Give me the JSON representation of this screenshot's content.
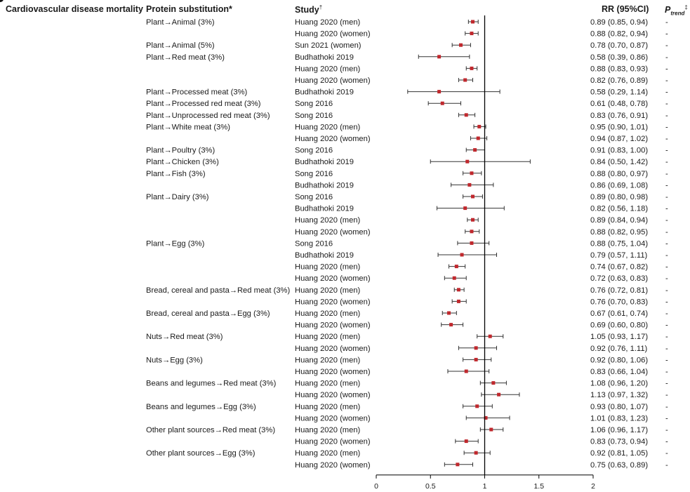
{
  "headers": {
    "outcome": "Cardiovascular disease mortality",
    "substitution": "Protein substitution*",
    "study": "Study",
    "study_mark": "†",
    "rr": "RR (95%CI)",
    "ptrend_p": "P",
    "ptrend_sub": "trend",
    "ptrend_mark": "‡"
  },
  "colors": {
    "point": "#c0282d",
    "ci_line": "#333333",
    "reference_line": "#000000",
    "text": "#1a1a1a"
  },
  "chart_data": {
    "type": "forest",
    "title": "Cardiovascular disease mortality",
    "xlabel": "",
    "xlim": [
      0,
      2
    ],
    "xticks": [
      0,
      0.5,
      1,
      1.5,
      2
    ],
    "xtick_labels": [
      "0",
      "0.5",
      "1",
      "1.5",
      "2"
    ],
    "reference_value": 1,
    "rows": [
      {
        "substitution": "Plant→Animal (3%)",
        "study": "Huang 2020 (men)",
        "rr": 0.89,
        "lo": 0.85,
        "hi": 0.94,
        "text": "0.89 (0.85, 0.94)",
        "ptrend": "-"
      },
      {
        "substitution": "",
        "study": "Huang 2020 (women)",
        "rr": 0.88,
        "lo": 0.82,
        "hi": 0.94,
        "text": "0.88 (0.82, 0.94)",
        "ptrend": "-"
      },
      {
        "substitution": "Plant→Animal (5%)",
        "study": "Sun 2021 (women)",
        "rr": 0.78,
        "lo": 0.7,
        "hi": 0.87,
        "text": "0.78 (0.70, 0.87)",
        "ptrend": "-"
      },
      {
        "substitution": "Plant→Red meat (3%)",
        "study": "Budhathoki 2019",
        "rr": 0.58,
        "lo": 0.39,
        "hi": 0.86,
        "text": "0.58 (0.39, 0.86)",
        "ptrend": "-"
      },
      {
        "substitution": "",
        "study": "Huang 2020 (men)",
        "rr": 0.88,
        "lo": 0.83,
        "hi": 0.93,
        "text": "0.88 (0.83, 0.93)",
        "ptrend": "-"
      },
      {
        "substitution": "",
        "study": "Huang 2020 (women)",
        "rr": 0.82,
        "lo": 0.76,
        "hi": 0.89,
        "text": "0.82 (0.76, 0.89)",
        "ptrend": "-"
      },
      {
        "substitution": "Plant→Processed meat (3%)",
        "study": "Budhathoki 2019",
        "rr": 0.58,
        "lo": 0.29,
        "hi": 1.14,
        "text": "0.58 (0.29, 1.14)",
        "ptrend": "-"
      },
      {
        "substitution": "Plant→Processed red meat (3%)",
        "study": "Song 2016",
        "rr": 0.61,
        "lo": 0.48,
        "hi": 0.78,
        "text": "0.61 (0.48, 0.78)",
        "ptrend": "-"
      },
      {
        "substitution": "Plant→Unprocessed red meat (3%)",
        "study": "Song 2016",
        "rr": 0.83,
        "lo": 0.76,
        "hi": 0.91,
        "text": "0.83 (0.76, 0.91)",
        "ptrend": "-"
      },
      {
        "substitution": "Plant→White meat (3%)",
        "study": "Huang 2020 (men)",
        "rr": 0.95,
        "lo": 0.9,
        "hi": 1.01,
        "text": "0.95 (0.90, 1.01)",
        "ptrend": "-"
      },
      {
        "substitution": "",
        "study": "Huang 2020 (women)",
        "rr": 0.94,
        "lo": 0.87,
        "hi": 1.02,
        "text": "0.94 (0.87, 1.02)",
        "ptrend": "-"
      },
      {
        "substitution": "Plant→Poultry (3%)",
        "study": "Song 2016",
        "rr": 0.91,
        "lo": 0.83,
        "hi": 1.0,
        "text": "0.91 (0.83, 1.00)",
        "ptrend": "-"
      },
      {
        "substitution": "Plant→Chicken (3%)",
        "study": "Budhathoki 2019",
        "rr": 0.84,
        "lo": 0.5,
        "hi": 1.42,
        "text": "0.84 (0.50, 1.42)",
        "ptrend": "-"
      },
      {
        "substitution": "Plant→Fish (3%)",
        "study": "Song 2016",
        "rr": 0.88,
        "lo": 0.8,
        "hi": 0.97,
        "text": "0.88 (0.80, 0.97)",
        "ptrend": "-"
      },
      {
        "substitution": "",
        "study": "Budhathoki 2019",
        "rr": 0.86,
        "lo": 0.69,
        "hi": 1.08,
        "text": "0.86 (0.69, 1.08)",
        "ptrend": "-"
      },
      {
        "substitution": "Plant→Dairy (3%)",
        "study": "Song 2016",
        "rr": 0.89,
        "lo": 0.8,
        "hi": 0.98,
        "text": "0.89 (0.80, 0.98)",
        "ptrend": "-"
      },
      {
        "substitution": "",
        "study": "Budhathoki 2019",
        "rr": 0.82,
        "lo": 0.56,
        "hi": 1.18,
        "text": "0.82 (0.56, 1.18)",
        "ptrend": "-"
      },
      {
        "substitution": "",
        "study": "Huang 2020 (men)",
        "rr": 0.89,
        "lo": 0.84,
        "hi": 0.94,
        "text": "0.89 (0.84, 0.94)",
        "ptrend": "-"
      },
      {
        "substitution": "",
        "study": "Huang 2020 (women)",
        "rr": 0.88,
        "lo": 0.82,
        "hi": 0.95,
        "text": "0.88 (0.82, 0.95)",
        "ptrend": "-"
      },
      {
        "substitution": "Plant→Egg (3%)",
        "study": "Song 2016",
        "rr": 0.88,
        "lo": 0.75,
        "hi": 1.04,
        "text": "0.88 (0.75, 1.04)",
        "ptrend": "-"
      },
      {
        "substitution": "",
        "study": "Budhathoki 2019",
        "rr": 0.79,
        "lo": 0.57,
        "hi": 1.11,
        "text": "0.79 (0.57, 1.11)",
        "ptrend": "-"
      },
      {
        "substitution": "",
        "study": "Huang 2020 (men)",
        "rr": 0.74,
        "lo": 0.67,
        "hi": 0.82,
        "text": "0.74 (0.67, 0.82)",
        "ptrend": "-"
      },
      {
        "substitution": "",
        "study": "Huang 2020 (women)",
        "rr": 0.72,
        "lo": 0.63,
        "hi": 0.83,
        "text": "0.72 (0.63, 0.83)",
        "ptrend": "-"
      },
      {
        "substitution": "Bread, cereal and pasta→Red meat (3%)",
        "study": "Huang 2020 (men)",
        "rr": 0.76,
        "lo": 0.72,
        "hi": 0.81,
        "text": "0.76 (0.72, 0.81)",
        "ptrend": "-"
      },
      {
        "substitution": "",
        "study": "Huang 2020 (women)",
        "rr": 0.76,
        "lo": 0.7,
        "hi": 0.83,
        "text": "0.76 (0.70, 0.83)",
        "ptrend": "-"
      },
      {
        "substitution": "Bread, cereal and pasta→Egg (3%)",
        "study": "Huang 2020 (men)",
        "rr": 0.67,
        "lo": 0.61,
        "hi": 0.74,
        "text": "0.67 (0.61, 0.74)",
        "ptrend": "-"
      },
      {
        "substitution": "",
        "study": "Huang 2020 (women)",
        "rr": 0.69,
        "lo": 0.6,
        "hi": 0.8,
        "text": "0.69 (0.60, 0.80)",
        "ptrend": "-"
      },
      {
        "substitution": "Nuts→Red meat (3%)",
        "study": "Huang 2020 (men)",
        "rr": 1.05,
        "lo": 0.93,
        "hi": 1.17,
        "text": "1.05 (0.93, 1.17)",
        "ptrend": "-"
      },
      {
        "substitution": "",
        "study": "Huang 2020 (women)",
        "rr": 0.92,
        "lo": 0.76,
        "hi": 1.11,
        "text": "0.92 (0.76, 1.11)",
        "ptrend": "-"
      },
      {
        "substitution": "Nuts→Egg (3%)",
        "study": "Huang 2020 (men)",
        "rr": 0.92,
        "lo": 0.8,
        "hi": 1.06,
        "text": "0.92 (0.80, 1.06)",
        "ptrend": "-"
      },
      {
        "substitution": "",
        "study": "Huang 2020 (women)",
        "rr": 0.83,
        "lo": 0.66,
        "hi": 1.04,
        "text": "0.83 (0.66, 1.04)",
        "ptrend": "-"
      },
      {
        "substitution": "Beans and legumes→Red meat (3%)",
        "study": "Huang 2020 (men)",
        "rr": 1.08,
        "lo": 0.96,
        "hi": 1.2,
        "text": "1.08 (0.96, 1.20)",
        "ptrend": "-"
      },
      {
        "substitution": "",
        "study": "Huang 2020 (women)",
        "rr": 1.13,
        "lo": 0.97,
        "hi": 1.32,
        "text": "1.13 (0.97, 1.32)",
        "ptrend": "-"
      },
      {
        "substitution": "Beans and legumes→Egg (3%)",
        "study": "Huang 2020 (men)",
        "rr": 0.93,
        "lo": 0.8,
        "hi": 1.07,
        "text": "0.93 (0.80, 1.07)",
        "ptrend": "-"
      },
      {
        "substitution": "",
        "study": "Huang 2020 (women)",
        "rr": 1.01,
        "lo": 0.83,
        "hi": 1.23,
        "text": "1.01 (0.83, 1.23)",
        "ptrend": "-"
      },
      {
        "substitution": "Other plant sources→Red meat (3%)",
        "study": "Huang 2020 (men)",
        "rr": 1.06,
        "lo": 0.96,
        "hi": 1.17,
        "text": "1.06 (0.96, 1.17)",
        "ptrend": "-"
      },
      {
        "substitution": "",
        "study": "Huang 2020 (women)",
        "rr": 0.83,
        "lo": 0.73,
        "hi": 0.94,
        "text": "0.83 (0.73, 0.94)",
        "ptrend": "-"
      },
      {
        "substitution": "Other plant sources→Egg (3%)",
        "study": "Huang 2020 (men)",
        "rr": 0.92,
        "lo": 0.81,
        "hi": 1.05,
        "text": "0.92 (0.81, 1.05)",
        "ptrend": "-"
      },
      {
        "substitution": "",
        "study": "Huang 2020 (women)",
        "rr": 0.75,
        "lo": 0.63,
        "hi": 0.89,
        "text": "0.75 (0.63, 0.89)",
        "ptrend": "-"
      }
    ]
  }
}
